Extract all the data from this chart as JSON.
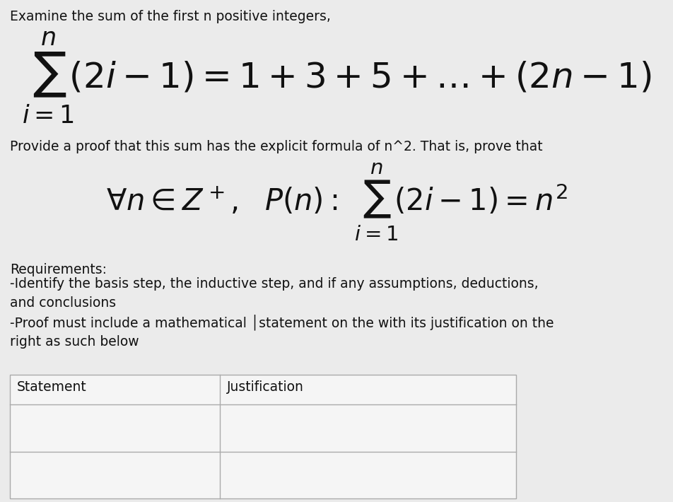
{
  "bg_color": "#ebebeb",
  "text_color": "#111111",
  "title_text": "Examine the sum of the first n positive integers,",
  "proof_intro": "Provide a proof that this sum has the explicit formula of n^2. That is, prove that",
  "requirements_header": "Requirements:",
  "req1": "-Identify the basis step, the inductive step, and if any assumptions, deductions,\nand conclusions",
  "req2": "-Proof must include a mathematical │statement on the with its justification on the\nright as such below",
  "table_col1": "Statement",
  "table_col2": "Justification",
  "font_size_body": 13.5,
  "font_size_formula1": 36,
  "font_size_formula2": 30,
  "bg_white": "#f5f5f5"
}
